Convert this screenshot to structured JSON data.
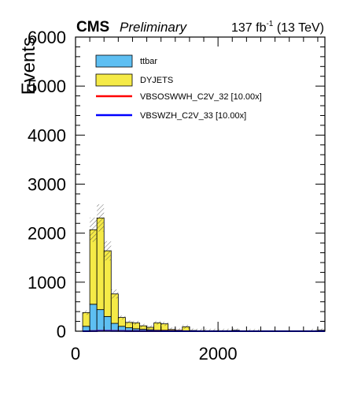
{
  "header": {
    "cms_label": "CMS",
    "preliminary_label": "Preliminary",
    "lumi_value": "137 fb",
    "lumi_exponent": "-1",
    "lumi_energy": " (13 TeV)"
  },
  "chart_data": {
    "type": "bar",
    "stacked": true,
    "ylabel": "Events",
    "xlabel": "",
    "xlim": [
      0,
      3500
    ],
    "ylim": [
      0,
      6000
    ],
    "x_ticks": [
      0,
      2000
    ],
    "y_ticks": [
      0,
      1000,
      2000,
      3000,
      4000,
      5000,
      6000
    ],
    "bin_width": 100,
    "bin_edges_start": 100,
    "legend_position": "top-left",
    "series": [
      {
        "name": "ttbar",
        "kind": "filled",
        "color": "#5ebff2",
        "values": [
          100,
          550,
          440,
          300,
          160,
          100,
          70,
          50,
          40,
          30,
          20,
          20,
          15,
          10,
          10,
          5,
          5,
          5,
          0,
          0,
          0,
          0,
          0,
          0,
          0,
          0,
          0,
          0,
          0,
          0,
          0,
          0,
          0,
          5
        ]
      },
      {
        "name": "DYJETS",
        "kind": "filled",
        "color": "#f5ea47",
        "values": [
          280,
          1520,
          1870,
          1340,
          600,
          180,
          110,
          120,
          70,
          50,
          150,
          130,
          20,
          10,
          80,
          10,
          5,
          5,
          10,
          10,
          10,
          20,
          0,
          5,
          5,
          0,
          0,
          0,
          0,
          0,
          0,
          0,
          5,
          15
        ]
      },
      {
        "name": "VBSOSWWH_C2V_32 [10.00x]",
        "kind": "line",
        "color": "#ff0000",
        "values": [
          0,
          5,
          10,
          10,
          8,
          6,
          5,
          4,
          4,
          3,
          3,
          2,
          2,
          2,
          1,
          1,
          1,
          1,
          1,
          0,
          0,
          0,
          0,
          0,
          0,
          0,
          0,
          0,
          0,
          0,
          0,
          0,
          0,
          0
        ]
      },
      {
        "name": "VBSWZH_C2V_33 [10.00x]",
        "kind": "line",
        "color": "#0000ff",
        "values": [
          0,
          3,
          6,
          6,
          5,
          4,
          3,
          3,
          2,
          2,
          2,
          1,
          1,
          1,
          1,
          1,
          0,
          0,
          0,
          0,
          0,
          0,
          0,
          0,
          0,
          0,
          0,
          0,
          0,
          0,
          0,
          0,
          0,
          0
        ]
      }
    ]
  }
}
